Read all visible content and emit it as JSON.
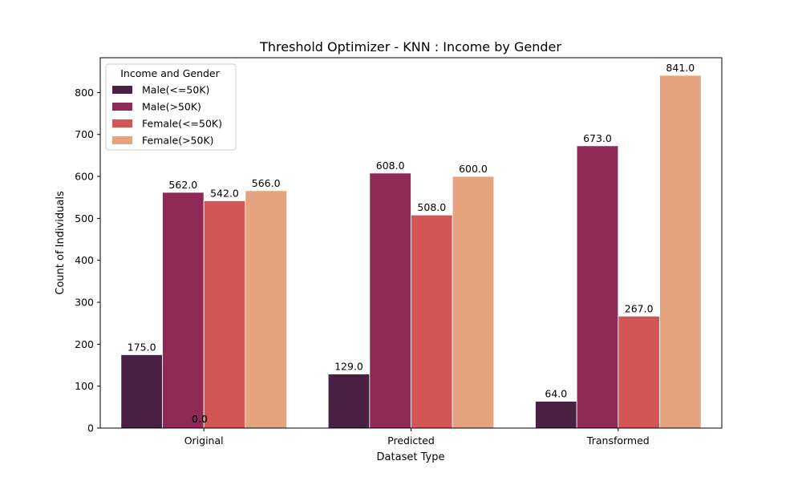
{
  "chart_data": {
    "type": "bar",
    "title": "Threshold Optimizer - KNN : Income by Gender",
    "xlabel": "Dataset Type",
    "ylabel": "Count of Individuals",
    "categories": [
      "Original",
      "Predicted",
      "Transformed"
    ],
    "ylim": [
      0,
      883
    ],
    "yticks": [
      0,
      100,
      200,
      300,
      400,
      500,
      600,
      700,
      800
    ],
    "grid": false,
    "legend": {
      "title": "Income and Gender",
      "placement": "top-left"
    },
    "series": [
      {
        "name": "Male(<=50K)",
        "color": "#4b2143",
        "values": [
          175,
          129,
          64
        ]
      },
      {
        "name": "Male(>50K)",
        "color": "#8f2a58",
        "values": [
          562,
          608,
          673
        ]
      },
      {
        "name": "Female(<=50K)",
        "color": "#d35656",
        "values": [
          542,
          508,
          267
        ]
      },
      {
        "name": "Female(>50K)",
        "color": "#e6a380",
        "values": [
          566,
          600,
          841
        ]
      }
    ],
    "extra_labels": [
      {
        "text": "0.0",
        "category": "Original",
        "value": 0
      },
      {
        "text": "0.0",
        "category": "Original",
        "value": 0
      }
    ]
  }
}
